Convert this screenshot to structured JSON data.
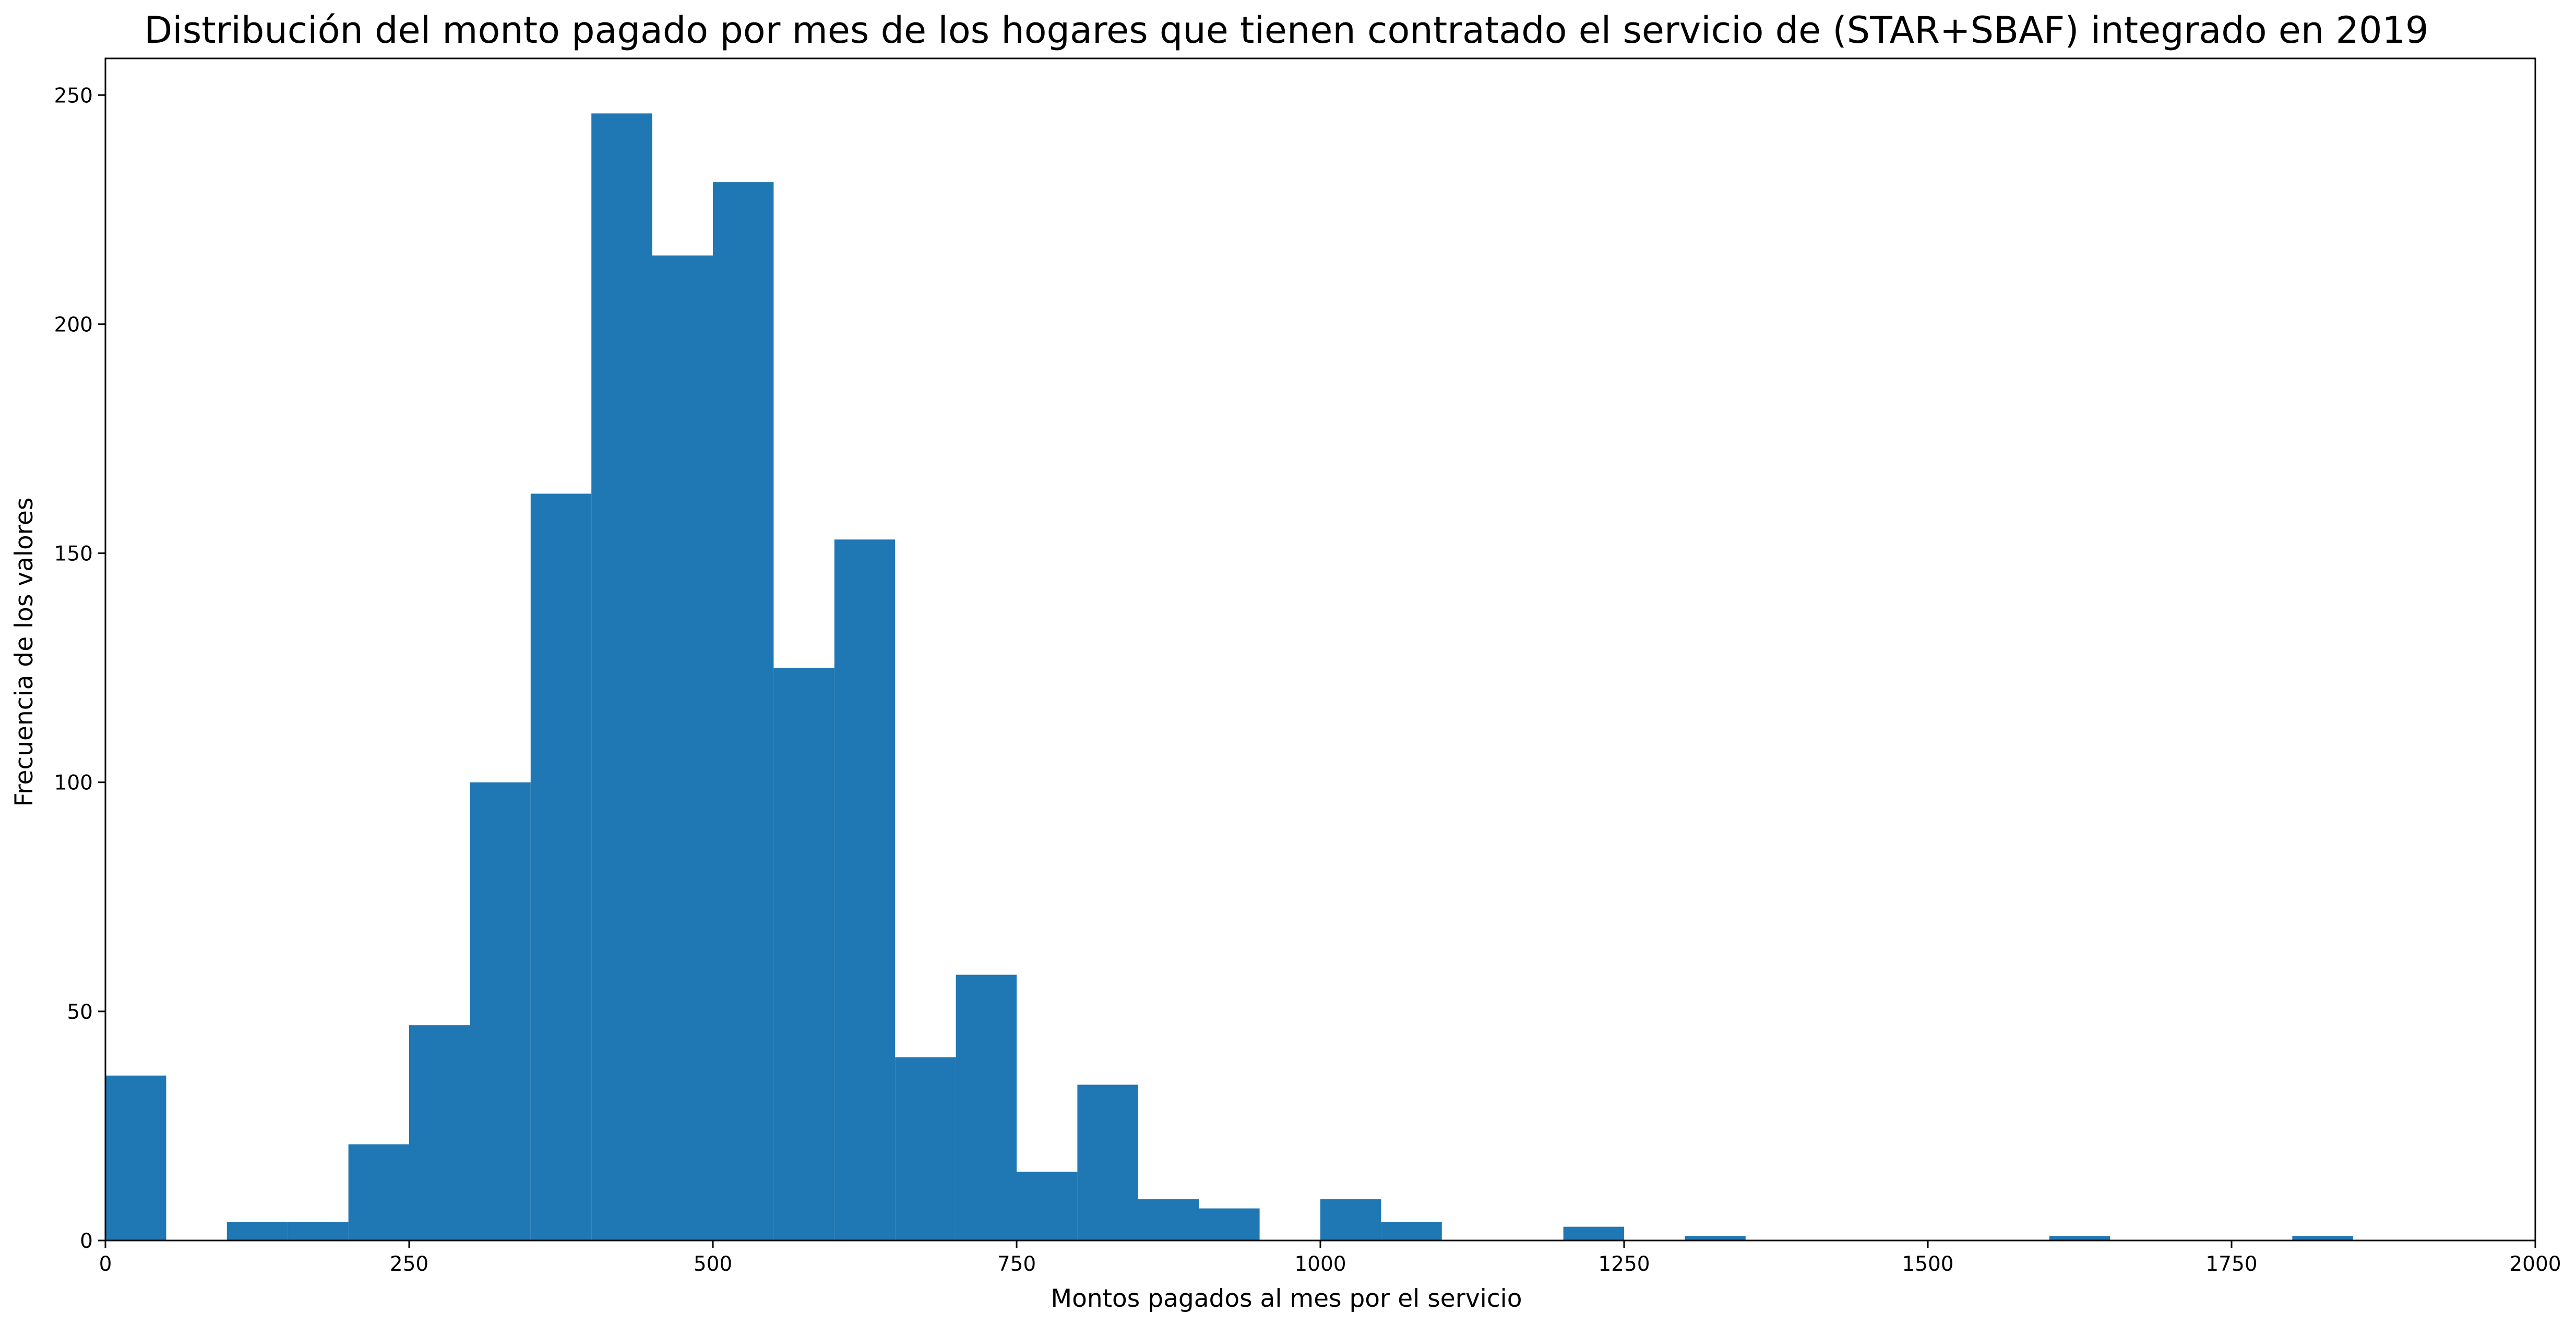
{
  "chart_data": {
    "type": "bar",
    "subtype": "histogram",
    "title": "Distribución del monto pagado por mes de los hogares que tienen contratado el servicio de (STAR+SBAF) integrado en 2019",
    "xlabel": "Montos pagados al mes por el servicio",
    "ylabel": "Frecuencia de los valores",
    "xlim": [
      0,
      2000
    ],
    "ylim": [
      0,
      258
    ],
    "xticks": [
      0,
      250,
      500,
      750,
      1000,
      1250,
      1500,
      1750,
      2000
    ],
    "yticks": [
      0,
      50,
      100,
      150,
      200,
      250
    ],
    "grid": false,
    "legend": "none",
    "bin_width": 50,
    "bins": [
      {
        "start": 0,
        "end": 50,
        "count": 36
      },
      {
        "start": 100,
        "end": 150,
        "count": 4
      },
      {
        "start": 150,
        "end": 200,
        "count": 4
      },
      {
        "start": 200,
        "end": 250,
        "count": 21
      },
      {
        "start": 250,
        "end": 300,
        "count": 47
      },
      {
        "start": 300,
        "end": 350,
        "count": 100
      },
      {
        "start": 350,
        "end": 400,
        "count": 163
      },
      {
        "start": 400,
        "end": 450,
        "count": 246
      },
      {
        "start": 450,
        "end": 500,
        "count": 215
      },
      {
        "start": 500,
        "end": 550,
        "count": 231
      },
      {
        "start": 550,
        "end": 600,
        "count": 125
      },
      {
        "start": 600,
        "end": 650,
        "count": 153
      },
      {
        "start": 650,
        "end": 700,
        "count": 40
      },
      {
        "start": 700,
        "end": 750,
        "count": 58
      },
      {
        "start": 750,
        "end": 800,
        "count": 15
      },
      {
        "start": 800,
        "end": 850,
        "count": 34
      },
      {
        "start": 850,
        "end": 900,
        "count": 9
      },
      {
        "start": 900,
        "end": 950,
        "count": 7
      },
      {
        "start": 1000,
        "end": 1050,
        "count": 9
      },
      {
        "start": 1050,
        "end": 1100,
        "count": 4
      },
      {
        "start": 1200,
        "end": 1250,
        "count": 3
      },
      {
        "start": 1300,
        "end": 1350,
        "count": 1
      },
      {
        "start": 1600,
        "end": 1650,
        "count": 1
      },
      {
        "start": 1800,
        "end": 1850,
        "count": 1
      }
    ],
    "colors": {
      "bar": "#1f77b4",
      "axis": "#000000"
    }
  }
}
